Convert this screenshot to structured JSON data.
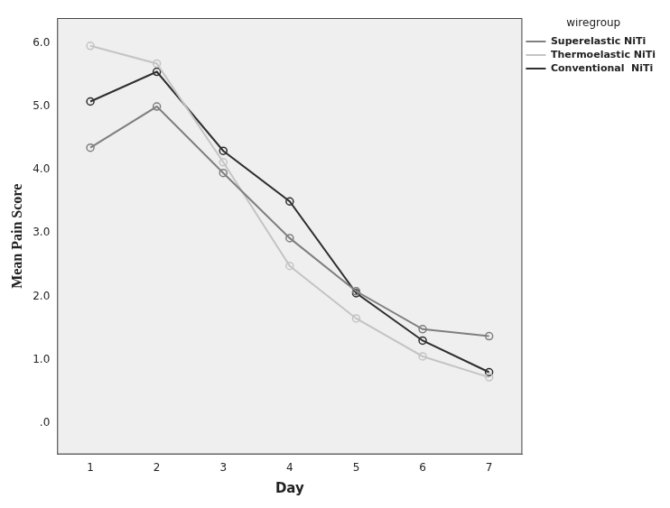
{
  "chart_data": {
    "type": "line",
    "x_label": "Day",
    "y_label": "Mean Pain Score",
    "legend_title": "wiregroup",
    "legend": "right",
    "grid": false,
    "categories": [
      "1",
      "2",
      "3",
      "4",
      "5",
      "6",
      "7"
    ],
    "series": [
      {
        "name": "Superelastic NiTi",
        "color": "#7f7f7f",
        "marker": "circle",
        "line_style": "solid",
        "values": [
          4.35,
          5.0,
          3.95,
          2.92,
          2.08,
          1.48,
          1.37
        ]
      },
      {
        "name": "Thermoelastic NiTi",
        "color": "#c4c4c4",
        "marker": "circle",
        "line_style": "solid",
        "values": [
          5.96,
          5.68,
          4.12,
          2.48,
          1.65,
          1.05,
          0.72
        ]
      },
      {
        "name": "Conventional  NiTi",
        "color": "#2e2e2e",
        "marker": "circle",
        "line_style": "solid",
        "values": [
          5.08,
          5.55,
          4.3,
          3.5,
          2.05,
          1.3,
          0.8
        ]
      }
    ],
    "ylim": [
      -0.5,
      6.4
    ],
    "yticks": [
      {
        "value": 0,
        "label": ".0"
      },
      {
        "value": 1,
        "label": "1.0"
      },
      {
        "value": 2,
        "label": "2.0"
      },
      {
        "value": 3,
        "label": "3.0"
      },
      {
        "value": 4,
        "label": "4.0"
      },
      {
        "value": 5,
        "label": "5.0"
      },
      {
        "value": 6,
        "label": "6.0"
      }
    ]
  }
}
